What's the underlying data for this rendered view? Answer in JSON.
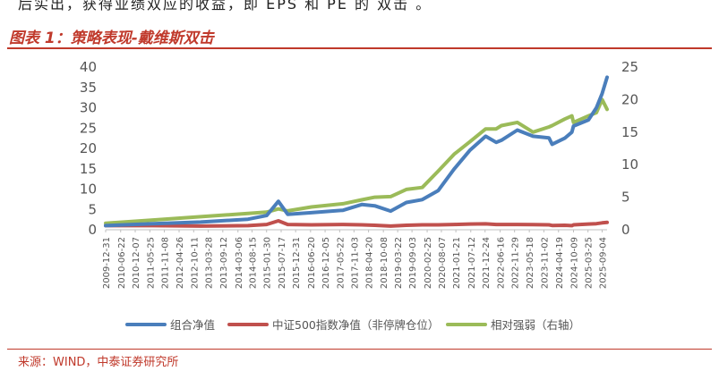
{
  "intro_text": "后实出，获得业绩双应的收益，即 EPS 和 PE 的  双击  。",
  "figure_title": "图表 1：策略表现-戴维斯双击",
  "source": "来源：WIND，中泰证券研究所",
  "colors": {
    "series1": "#4a7ebb",
    "series2": "#c0504d",
    "series3": "#9bbb59",
    "accent": "#c0392b"
  },
  "chart_data": {
    "type": "line",
    "title": "",
    "xlabel": "",
    "ylabel": "",
    "ylim": [
      0,
      40
    ],
    "y2lim": [
      0,
      25
    ],
    "yticks": [
      "0",
      "5",
      "10",
      "15",
      "20",
      "25",
      "30",
      "35",
      "40"
    ],
    "y2ticks": [
      "0",
      "5",
      "10",
      "15",
      "20",
      "25"
    ],
    "legend_position": "bottom",
    "x_ticks": [
      "2009-12-31",
      "2010-06-22",
      "2010-12-07",
      "2011-05-25",
      "2011-11-08",
      "2012-04-26",
      "2012-10-11",
      "2013-03-28",
      "2013-09-12",
      "2014-03-06",
      "2014-08-15",
      "2015-01-30",
      "2015-07-17",
      "2015-12-31",
      "2016-06-20",
      "2016-12-05",
      "2017-05-22",
      "2017-11-03",
      "2018-04-20",
      "2018-10-08",
      "2019-03-22",
      "2019-09-03",
      "2020-02-25",
      "2020-08-07",
      "2021-01-21",
      "2021-07-12",
      "2021-12-24",
      "2022-06-16",
      "2022-11-29",
      "2023-05-18",
      "2023-11-02",
      "2024-04-19",
      "2024-10-09",
      "2025-03-25",
      "2025-09-04"
    ],
    "x": [
      "2009-12-31",
      "2011-06-30",
      "2012-12-31",
      "2014-06-30",
      "2015-01-31",
      "2015-06-15",
      "2015-09-30",
      "2016-06-30",
      "2017-06-30",
      "2018-01-31",
      "2018-06-30",
      "2018-12-31",
      "2019-06-30",
      "2019-12-31",
      "2020-06-30",
      "2020-12-31",
      "2021-06-30",
      "2021-12-31",
      "2022-04-30",
      "2022-06-30",
      "2022-12-31",
      "2023-06-30",
      "2023-12-31",
      "2024-02-05",
      "2024-06-30",
      "2024-09-20",
      "2024-10-09",
      "2025-03-31",
      "2025-06-30",
      "2025-09-04",
      "2025-10-31"
    ],
    "series": [
      {
        "name": "组合净值",
        "axis": "left",
        "values": [
          1.0,
          1.5,
          1.9,
          2.6,
          3.5,
          7.0,
          3.8,
          4.2,
          4.8,
          6.2,
          5.9,
          4.6,
          6.7,
          7.4,
          9.6,
          14.9,
          19.5,
          23.0,
          21.5,
          22.0,
          24.5,
          23.0,
          22.6,
          21.0,
          22.5,
          24.0,
          25.5,
          27.0,
          30.0,
          33.5,
          37.5
        ]
      },
      {
        "name": "中证500指数净值（非停牌仓位）",
        "axis": "left",
        "values": [
          1.0,
          1.0,
          0.9,
          1.0,
          1.3,
          2.2,
          1.3,
          1.2,
          1.3,
          1.2,
          1.1,
          0.9,
          1.1,
          1.2,
          1.2,
          1.3,
          1.4,
          1.45,
          1.3,
          1.3,
          1.3,
          1.25,
          1.2,
          1.05,
          1.1,
          1.0,
          1.2,
          1.4,
          1.5,
          1.7,
          1.8
        ]
      },
      {
        "name": "相对强弱（右轴）",
        "axis": "right",
        "values": [
          1.0,
          1.5,
          2.0,
          2.5,
          2.7,
          3.2,
          2.9,
          3.5,
          4.0,
          4.6,
          5.0,
          5.1,
          6.2,
          6.5,
          9.0,
          11.6,
          13.5,
          15.5,
          15.5,
          16.0,
          16.5,
          15.0,
          15.8,
          16.0,
          17.0,
          17.5,
          16.5,
          17.5,
          18.0,
          20.0,
          18.5
        ]
      }
    ]
  }
}
